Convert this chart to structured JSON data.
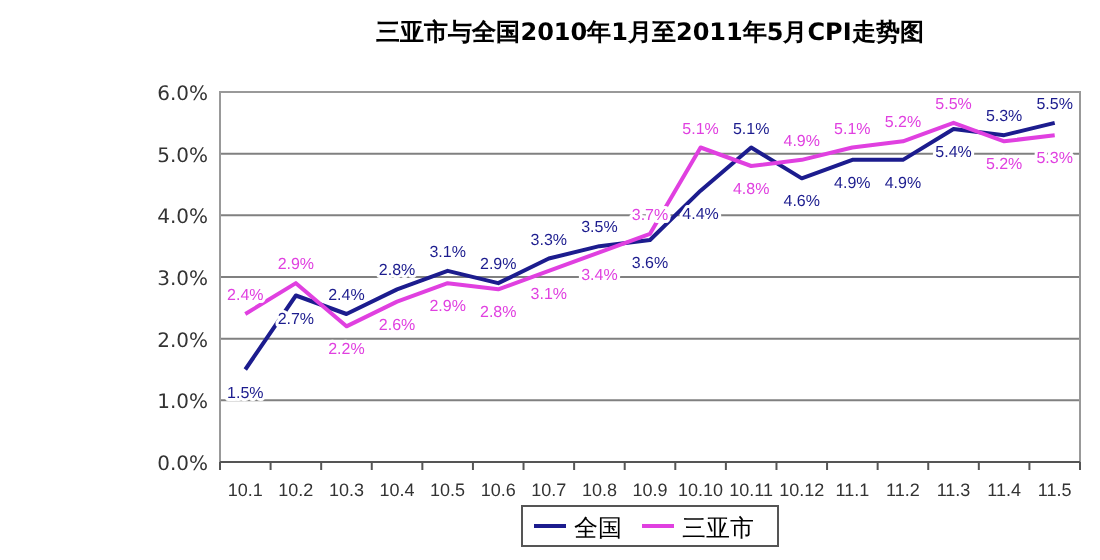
{
  "chart_data": {
    "type": "line",
    "title": "三亚市与全国2010年1月至2011年5月CPI走势图",
    "categories": [
      "10.1",
      "10.2",
      "10.3",
      "10.4",
      "10.5",
      "10.6",
      "10.7",
      "10.8",
      "10.9",
      "10.10",
      "10.11",
      "10.12",
      "11.1",
      "11.2",
      "11.3",
      "11.4",
      "11.5"
    ],
    "series": [
      {
        "name": "全国",
        "color": "#1c1c8e",
        "values": [
          1.5,
          2.7,
          2.4,
          2.8,
          3.1,
          2.9,
          3.3,
          3.5,
          3.6,
          4.4,
          5.1,
          4.6,
          4.9,
          4.9,
          5.4,
          5.3,
          5.5
        ],
        "value_labels": [
          "1.5%",
          "2.7%",
          "2.4%",
          "2.8%",
          "3.1%",
          "2.9%",
          "3.3%",
          "3.5%",
          "3.6%",
          "4.4%",
          "5.1%",
          "4.6%",
          "4.9%",
          "4.9%",
          "5.4%",
          "5.3%",
          "5.5%"
        ]
      },
      {
        "name": "三亚市",
        "color": "#e040e0",
        "values": [
          2.4,
          2.9,
          2.2,
          2.6,
          2.9,
          2.8,
          3.1,
          3.4,
          3.7,
          5.1,
          4.8,
          4.9,
          5.1,
          5.2,
          5.5,
          5.2,
          5.3
        ],
        "value_labels": [
          "2.4%",
          "2.9%",
          "2.2%",
          "2.6%",
          "2.9%",
          "2.8%",
          "3.1%",
          "3.4%",
          "3.7%",
          "5.1%",
          "4.8%",
          "4.9%",
          "5.1%",
          "5.2%",
          "5.5%",
          "5.2%",
          "5.3%"
        ]
      }
    ],
    "ylim": [
      0,
      6
    ],
    "yticks": [
      {
        "value": 0,
        "label": "0.0%"
      },
      {
        "value": 1,
        "label": "1.0%"
      },
      {
        "value": 2,
        "label": "2.0%"
      },
      {
        "value": 3,
        "label": "3.0%"
      },
      {
        "value": 4,
        "label": "4.0%"
      },
      {
        "value": 5,
        "label": "5.0%"
      },
      {
        "value": 6,
        "label": "6.0%"
      }
    ],
    "grid": "y",
    "legend": "bottom"
  }
}
